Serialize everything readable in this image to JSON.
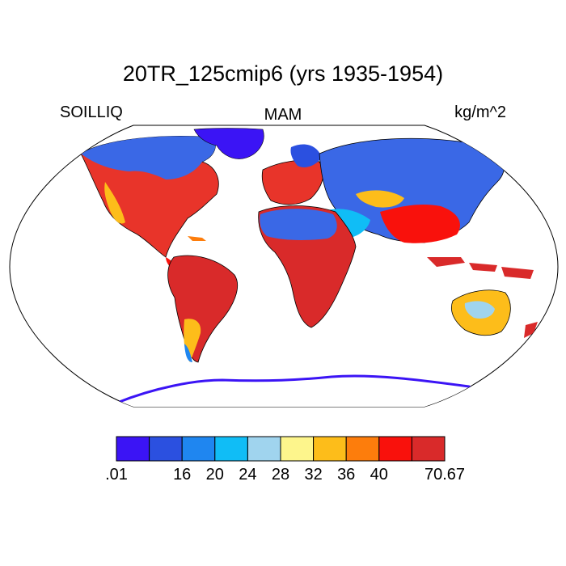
{
  "title": "20TR_125cmip6 (yrs 1935-1954)",
  "variable": "SOILLIQ",
  "season": "MAM",
  "units": "kg/m^2",
  "colorbar": {
    "colors": [
      "#3b14f5",
      "#2b50e0",
      "#1f86f0",
      "#10bdf6",
      "#a0d4ee",
      "#fdf58c",
      "#fdbd1a",
      "#fd7d0c",
      "#f9110c",
      "#d92a2a"
    ],
    "tick_labels": [
      ".01",
      "16",
      "20",
      "24",
      "28",
      "32",
      "36",
      "40",
      "70.67"
    ],
    "tick_boundaries": [
      0,
      2,
      3,
      4,
      5,
      6,
      7,
      8,
      10
    ]
  }
}
